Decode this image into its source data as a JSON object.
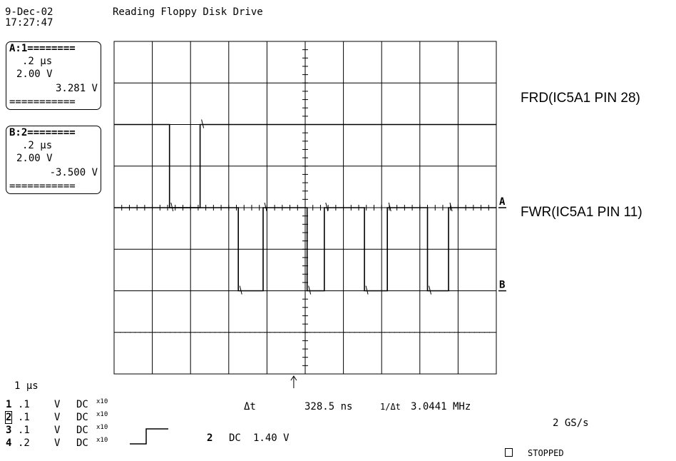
{
  "header": {
    "date": "9-Dec-02",
    "time": "17:27:47",
    "title": "Reading Floppy Disk Drive"
  },
  "trace_a_box": {
    "header": "A:1========",
    "timebase": ".2 μs",
    "volts": "2.00 V",
    "offset": "3.281 V",
    "footer": "==========="
  },
  "trace_b_box": {
    "header": "B:2========",
    "timebase": ".2 μs",
    "volts": "2.00 V",
    "offset": "-3.500 V",
    "footer": "==========="
  },
  "signal_labels": {
    "a": "FRD(IC5A1 PIN 28)",
    "b": "FWR(IC5A1 PIN 11)"
  },
  "trace_markers": {
    "a": "A",
    "b": "B"
  },
  "horizontal_scale": "1 μs",
  "channels": [
    {
      "num": "1",
      "scale": ".1",
      "unit": "V",
      "coupling": "DC",
      "probe": "x10"
    },
    {
      "num": "2",
      "scale": ".1",
      "unit": "V",
      "coupling": "DC",
      "probe": "x10"
    },
    {
      "num": "3",
      "scale": ".1",
      "unit": "V",
      "coupling": "DC",
      "probe": "x10"
    },
    {
      "num": "4",
      "scale": ".2",
      "unit": "V",
      "coupling": "DC",
      "probe": "x10"
    }
  ],
  "measurements": {
    "delta_t_label": "Δt",
    "delta_t_value": "328.5 ns",
    "freq_label": "1/Δt",
    "freq_value": "3.0441 MHz"
  },
  "trigger": {
    "channel": "2",
    "coupling": "DC",
    "level": "1.40 V"
  },
  "sample_rate": "2 GS/s",
  "status": "STOPPED",
  "chart_data": {
    "type": "line",
    "title": "Reading Floppy Disk Drive",
    "xlabel": "",
    "ylabel": "",
    "x_unit": "μs",
    "xlim": [
      0,
      10
    ],
    "ylim": [
      -4,
      4
    ],
    "grid": true,
    "series": [
      {
        "name": "FRD(IC5A1 PIN 28)",
        "points": [
          [
            0,
            2
          ],
          [
            1.45,
            2
          ],
          [
            1.45,
            0
          ],
          [
            2.25,
            0
          ],
          [
            2.25,
            2
          ],
          [
            10,
            2
          ]
        ]
      },
      {
        "name": "FWR(IC5A1 PIN 11)",
        "points": [
          [
            0,
            0
          ],
          [
            3.25,
            0
          ],
          [
            3.25,
            -2
          ],
          [
            3.9,
            -2
          ],
          [
            3.9,
            0
          ],
          [
            5.05,
            0
          ],
          [
            5.05,
            -2
          ],
          [
            5.5,
            -2
          ],
          [
            5.5,
            0
          ],
          [
            6.55,
            0
          ],
          [
            6.55,
            -2
          ],
          [
            7.15,
            -2
          ],
          [
            7.15,
            0
          ],
          [
            8.2,
            0
          ],
          [
            8.2,
            -2
          ],
          [
            8.75,
            -2
          ],
          [
            8.75,
            0
          ],
          [
            10,
            0
          ]
        ]
      }
    ]
  }
}
